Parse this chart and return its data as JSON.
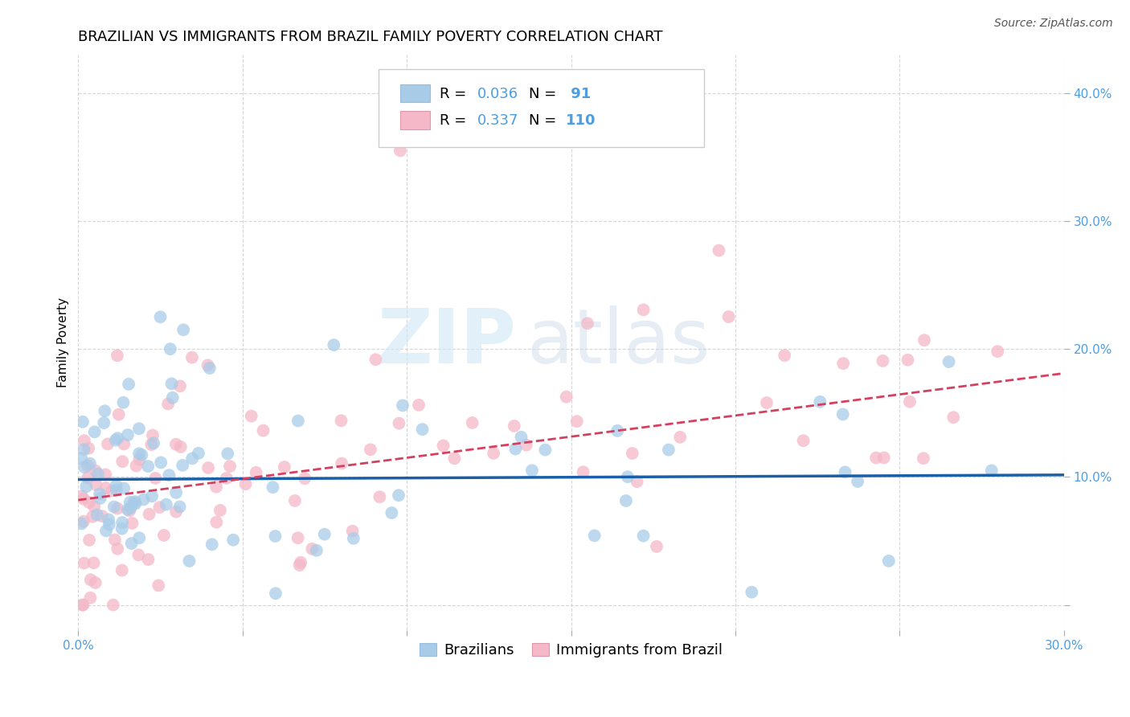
{
  "title": "BRAZILIAN VS IMMIGRANTS FROM BRAZIL FAMILY POVERTY CORRELATION CHART",
  "source": "Source: ZipAtlas.com",
  "ylabel": "Family Poverty",
  "xlim": [
    0.0,
    0.3
  ],
  "ylim": [
    -0.02,
    0.43
  ],
  "xticks": [
    0.0,
    0.05,
    0.1,
    0.15,
    0.2,
    0.25,
    0.3
  ],
  "yticks": [
    0.0,
    0.1,
    0.2,
    0.3,
    0.4
  ],
  "blue_R": "0.036",
  "blue_N": "91",
  "pink_R": "0.337",
  "pink_N": "110",
  "blue_color": "#a8cce8",
  "pink_color": "#f4b8c8",
  "blue_line_color": "#1a5fa8",
  "pink_line_color": "#d44060",
  "axis_color": "#4d9de0",
  "watermark_zip": "ZIP",
  "watermark_atlas": "atlas",
  "legend_label_blue": "Brazilians",
  "legend_label_pink": "Immigrants from Brazil",
  "grid_color": "#cccccc",
  "background_color": "#ffffff",
  "title_fontsize": 13,
  "source_fontsize": 10,
  "tick_fontsize": 11,
  "ylabel_fontsize": 11,
  "legend_fontsize": 13,
  "annotation_fontsize": 13
}
